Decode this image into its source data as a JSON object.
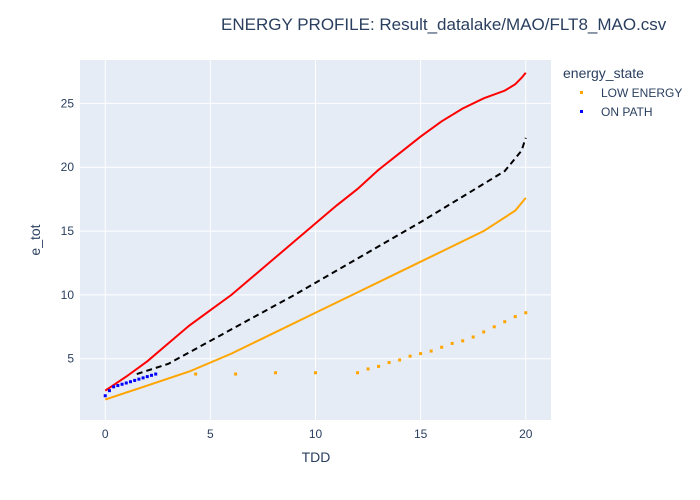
{
  "chart_data": {
    "type": "scatter",
    "title": "ENERGY PROFILE: Result_datalake/MAO/FLT8_MAO.csv",
    "xlabel": "TDD",
    "ylabel": "e_tot",
    "xlim": [
      -1.2,
      21.2
    ],
    "ylim": [
      0.2,
      28.4
    ],
    "xticks": [
      0,
      5,
      10,
      15,
      20
    ],
    "yticks": [
      5,
      10,
      15,
      20,
      25
    ],
    "grid": true,
    "legend": {
      "title": "energy_state",
      "placement": "top-right",
      "entries": [
        {
          "label": "LOW ENERGY",
          "color": "#ffa500"
        },
        {
          "label": "ON PATH",
          "color": "#0000ff"
        }
      ]
    },
    "lines": [
      {
        "color": "#ff0000",
        "dash": "solid",
        "x": [
          0,
          1,
          2,
          3,
          4,
          5,
          6,
          7,
          8,
          9,
          10,
          11,
          12,
          13,
          14,
          15,
          16,
          17,
          18,
          19,
          19.5,
          19.8,
          20
        ],
        "y": [
          2.5,
          3.6,
          4.8,
          6.2,
          7.6,
          8.8,
          10.0,
          11.4,
          12.8,
          14.2,
          15.6,
          17.0,
          18.3,
          19.8,
          21.1,
          22.4,
          23.6,
          24.6,
          25.4,
          26.0,
          26.5,
          27.0,
          27.4
        ]
      },
      {
        "color": "#000000",
        "dash": "dashed",
        "x": [
          1.5,
          3,
          5,
          7,
          9,
          11,
          13,
          15,
          17,
          19,
          19.8,
          20
        ],
        "y": [
          3.8,
          4.6,
          6.4,
          8.2,
          10.0,
          11.9,
          13.8,
          15.7,
          17.7,
          19.7,
          21.3,
          22.3
        ]
      },
      {
        "color": "#ffa500",
        "dash": "solid",
        "x": [
          0,
          2,
          4,
          6,
          8,
          10,
          12,
          14,
          16,
          18,
          19.5,
          20
        ],
        "y": [
          1.8,
          2.9,
          4.0,
          5.4,
          7.0,
          8.6,
          10.2,
          11.8,
          13.4,
          15.0,
          16.6,
          17.6
        ]
      }
    ],
    "series": [
      {
        "name": "LOW ENERGY",
        "color": "#ffa500",
        "x": [
          4.3,
          6.2,
          8.1,
          10.0,
          12.0,
          12.5,
          13.0,
          13.5,
          14.0,
          14.5,
          15.0,
          15.5,
          16.0,
          16.5,
          17.0,
          17.5,
          18.0,
          18.5,
          19.0,
          19.5,
          20.0
        ],
        "y": [
          3.8,
          3.8,
          3.9,
          3.9,
          3.9,
          4.2,
          4.4,
          4.7,
          4.9,
          5.2,
          5.4,
          5.6,
          5.9,
          6.2,
          6.4,
          6.7,
          7.1,
          7.5,
          7.9,
          8.3,
          8.6
        ]
      },
      {
        "name": "ON PATH",
        "color": "#0000ff",
        "x": [
          0,
          0.2,
          0.4,
          0.6,
          0.8,
          1.0,
          1.2,
          1.4,
          1.6,
          1.8,
          2.0,
          2.2,
          2.4
        ],
        "y": [
          2.1,
          2.5,
          2.8,
          2.9,
          3.0,
          3.1,
          3.2,
          3.3,
          3.4,
          3.5,
          3.6,
          3.7,
          3.8
        ]
      }
    ]
  }
}
